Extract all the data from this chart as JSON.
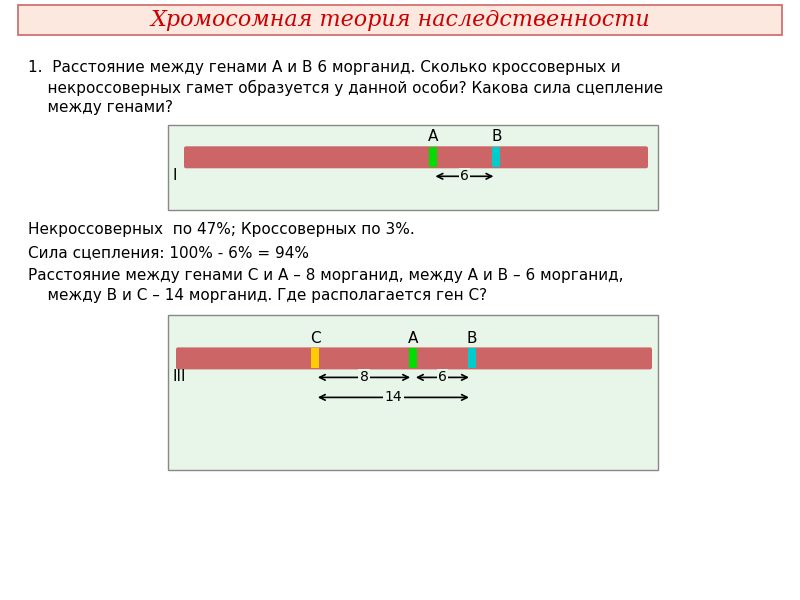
{
  "title": "Хромосомная теория наследственности",
  "title_color": "#cc0000",
  "title_bg": "#fde8e0",
  "title_border": "#cc6666",
  "page_bg": "#ffffff",
  "text1_line1": "1.  Расстояние между генами А и В 6 морганид. Сколько кроссоверных и",
  "text1_line2": "    некроссоверных гамет образуется у данной особи? Какова сила сцепление",
  "text1_line3": "    между генами?",
  "diagram1_bg": "#e8f5e9",
  "diagram1_border": "#888888",
  "chrom_color": "#cc6666",
  "gene_A_color": "#00dd00",
  "gene_B_color": "#00cccc",
  "gene_C_color": "#ffcc00",
  "label_I": "I",
  "label_III": "III",
  "dist1": "6",
  "text2_line1": "Некроссоверных  по 47%; Кроссоверных по 3%.",
  "text2_line2": "Сила сцепления: 100% - 6% = 94%",
  "text2_line3": "Расстояние между генами С и А – 8 морганид, между А и В – 6 морганид,",
  "text2_line4": "    между В и С – 14 морганид. Где располагается ген С?",
  "diagram2_bg": "#e8f5e9",
  "diagram2_border": "#888888",
  "dist_CA": "8",
  "dist_AB": "6",
  "dist_CB": "14"
}
